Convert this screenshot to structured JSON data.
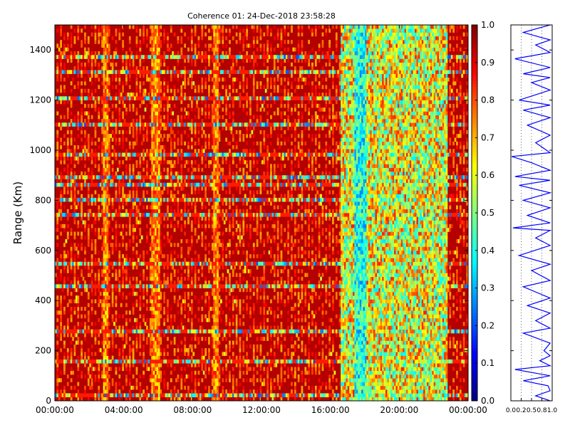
{
  "chart_data": [
    {
      "type": "heatmap",
      "title": "Coherence 01: 24-Dec-2018 23:58:28",
      "xlabel": "",
      "ylabel": "Range (Km)",
      "x_ticks": [
        "00:00:00",
        "04:00:00",
        "08:00:00",
        "12:00:00",
        "16:00:00",
        "20:00:00",
        "00:00:00"
      ],
      "x_range_hours": [
        0,
        24
      ],
      "y_ticks": [
        0,
        200,
        400,
        600,
        800,
        1000,
        1200,
        1400
      ],
      "ylim": [
        0,
        1500
      ],
      "colormap": "jet",
      "colorbar_ticks": [
        "0.0",
        "0.1",
        "0.2",
        "0.3",
        "0.4",
        "0.5",
        "0.6",
        "0.7",
        "0.8",
        "0.9",
        "1.0"
      ],
      "clim": [
        0.0,
        1.0
      ],
      "grid": false,
      "description_of_values": {
        "background_value": 0.95,
        "bright_columns_hours": [
          5.7,
          5.8,
          5.9,
          9.3,
          2.9
        ],
        "low_coherence_band_hours": [
          16.6,
          22.8
        ],
        "lowest_band_hours": [
          17.4,
          18.1
        ],
        "low_rows_km": [
          20,
          160,
          270,
          455,
          545,
          740,
          800,
          860,
          895,
          975,
          1100,
          1200,
          1305,
          1365
        ]
      }
    },
    {
      "type": "line",
      "title": "",
      "xlabel": "",
      "ylabel": "",
      "x_ticks": [
        "0.0",
        "0.2",
        "0.5",
        "0.8",
        "1.0"
      ],
      "x_tick_values": [
        0.0,
        0.25,
        0.5,
        0.75,
        1.0
      ],
      "xlim": [
        0.0,
        1.0
      ],
      "ylim": [
        0,
        1500
      ],
      "grid": true,
      "series": [
        {
          "color": "#0000ff",
          "points": [
            [
              0.95,
              0
            ],
            [
              0.6,
              20
            ],
            [
              0.95,
              40
            ],
            [
              0.9,
              60
            ],
            [
              0.3,
              80
            ],
            [
              0.95,
              100
            ],
            [
              0.1,
              125
            ],
            [
              0.95,
              140
            ],
            [
              0.7,
              160
            ],
            [
              0.95,
              180
            ],
            [
              0.8,
              200
            ],
            [
              0.95,
              230
            ],
            [
              0.3,
              270
            ],
            [
              0.95,
              290
            ],
            [
              0.6,
              320
            ],
            [
              0.95,
              350
            ],
            [
              0.4,
              380
            ],
            [
              0.95,
              410
            ],
            [
              0.3,
              455
            ],
            [
              0.95,
              480
            ],
            [
              0.5,
              520
            ],
            [
              0.95,
              545
            ],
            [
              0.2,
              580
            ],
            [
              0.95,
              620
            ],
            [
              0.6,
              650
            ],
            [
              0.95,
              680
            ],
            [
              0.05,
              690
            ],
            [
              0.95,
              710
            ],
            [
              0.4,
              740
            ],
            [
              0.95,
              770
            ],
            [
              0.3,
              800
            ],
            [
              0.95,
              830
            ],
            [
              0.2,
              860
            ],
            [
              0.95,
              880
            ],
            [
              0.1,
              895
            ],
            [
              0.95,
              920
            ],
            [
              0.5,
              950
            ],
            [
              0.02,
              975
            ],
            [
              0.95,
              990
            ],
            [
              0.6,
              1030
            ],
            [
              0.95,
              1060
            ],
            [
              0.4,
              1100
            ],
            [
              0.95,
              1130
            ],
            [
              0.3,
              1160
            ],
            [
              0.95,
              1180
            ],
            [
              0.2,
              1200
            ],
            [
              0.95,
              1240
            ],
            [
              0.5,
              1270
            ],
            [
              0.95,
              1290
            ],
            [
              0.3,
              1305
            ],
            [
              0.95,
              1330
            ],
            [
              0.1,
              1365
            ],
            [
              0.95,
              1390
            ],
            [
              0.6,
              1420
            ],
            [
              0.95,
              1440
            ],
            [
              0.3,
              1470
            ],
            [
              0.95,
              1500
            ]
          ]
        }
      ]
    }
  ]
}
